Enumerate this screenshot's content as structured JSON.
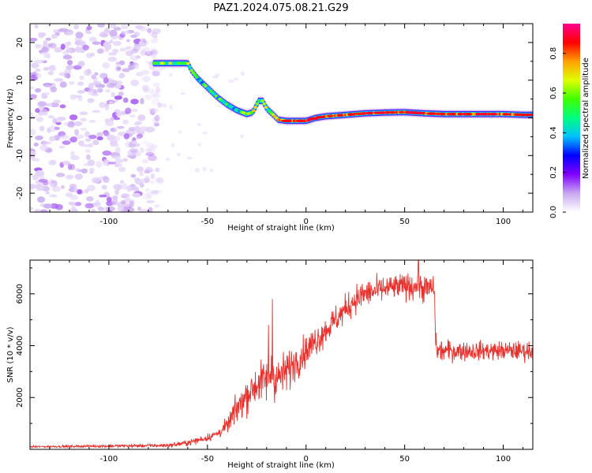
{
  "figure": {
    "title": "PAZ1.2024.075.08.21.G29"
  },
  "chart_data": [
    {
      "type": "heatmap",
      "xlabel": "Height of straight line (km)",
      "ylabel": "Frequency (Hz)",
      "xlim": [
        -140,
        115
      ],
      "ylim": [
        -25,
        25
      ],
      "xticks": [
        -100,
        -50,
        0,
        50,
        100
      ],
      "yticks": [
        -20,
        -10,
        0,
        10,
        20
      ],
      "colorbar": {
        "label": "Normalized spectral amplitude",
        "ticks": [
          0.0,
          0.2,
          0.4,
          0.6,
          0.8
        ],
        "range": [
          0,
          0.95
        ],
        "colormap": [
          "#ffffff",
          "#c8a8f0",
          "#8000ff",
          "#0000ff",
          "#00c0ff",
          "#00ff80",
          "#40ff00",
          "#e0ff00",
          "#ffa000",
          "#ff0000",
          "#ff0090"
        ]
      },
      "noise_region": {
        "x_range": [
          -140,
          -78
        ],
        "freq_range": [
          -25,
          25
        ]
      },
      "ridge": {
        "x": [
          -77,
          -60,
          -58,
          -55,
          -50,
          -45,
          -40,
          -35,
          -30,
          -27,
          -24,
          -22,
          -20,
          -17,
          -14,
          -10,
          -5,
          0,
          5,
          10,
          20,
          30,
          40,
          50,
          60,
          70,
          80,
          90,
          100,
          110,
          115
        ],
        "freq": [
          14.5,
          14.5,
          12.5,
          10.5,
          8.0,
          5.5,
          3.5,
          2.0,
          1.0,
          1.5,
          4.5,
          4.5,
          2.5,
          1.0,
          -0.5,
          -0.8,
          -0.8,
          -0.8,
          0,
          0.4,
          0.8,
          1.2,
          1.4,
          1.5,
          1.2,
          1.0,
          1.0,
          1.0,
          1.0,
          0.8,
          0.8
        ],
        "amplitude": [
          0.55,
          0.6,
          0.5,
          0.5,
          0.5,
          0.5,
          0.5,
          0.5,
          0.55,
          0.6,
          0.65,
          0.6,
          0.6,
          0.6,
          0.8,
          0.9,
          0.9,
          0.9,
          0.9,
          0.9,
          0.85,
          0.85,
          0.85,
          0.85,
          0.85,
          0.85,
          0.85,
          0.85,
          0.9,
          0.9,
          0.9
        ]
      }
    },
    {
      "type": "line",
      "xlabel": "Height of straight line (km)",
      "ylabel": "SNR (10 * v/v)",
      "xlim": [
        -140,
        115
      ],
      "ylim": [
        0,
        7300
      ],
      "xticks": [
        -100,
        -50,
        0,
        50,
        100
      ],
      "yticks": [
        2000,
        4000,
        6000
      ],
      "color": "#e8302c",
      "envelope": {
        "x": [
          -140,
          -70,
          -60,
          -50,
          -45,
          -40,
          -35,
          -30,
          -25,
          -20,
          -18,
          -15,
          -10,
          -5,
          0,
          5,
          10,
          15,
          20,
          25,
          30,
          40,
          50,
          55,
          60,
          65,
          66,
          70,
          80,
          90,
          100,
          110,
          115
        ],
        "mean": [
          100,
          150,
          250,
          450,
          600,
          900,
          1600,
          2100,
          2500,
          2700,
          3000,
          2700,
          3000,
          3400,
          3800,
          4200,
          4600,
          5000,
          5400,
          5800,
          6000,
          6200,
          6300,
          6300,
          6200,
          6200,
          3800,
          3800,
          3800,
          3800,
          3800,
          3800,
          3800
        ],
        "noise": [
          30,
          60,
          90,
          120,
          150,
          250,
          450,
          550,
          600,
          700,
          800,
          700,
          650,
          550,
          500,
          500,
          450,
          450,
          450,
          450,
          450,
          400,
          400,
          450,
          450,
          450,
          350,
          350,
          300,
          300,
          300,
          300,
          300
        ]
      },
      "spikes": [
        {
          "x": -17,
          "y": 5800
        },
        {
          "x": -19,
          "y": 4800
        },
        {
          "x": 57,
          "y": 7300
        }
      ]
    }
  ]
}
